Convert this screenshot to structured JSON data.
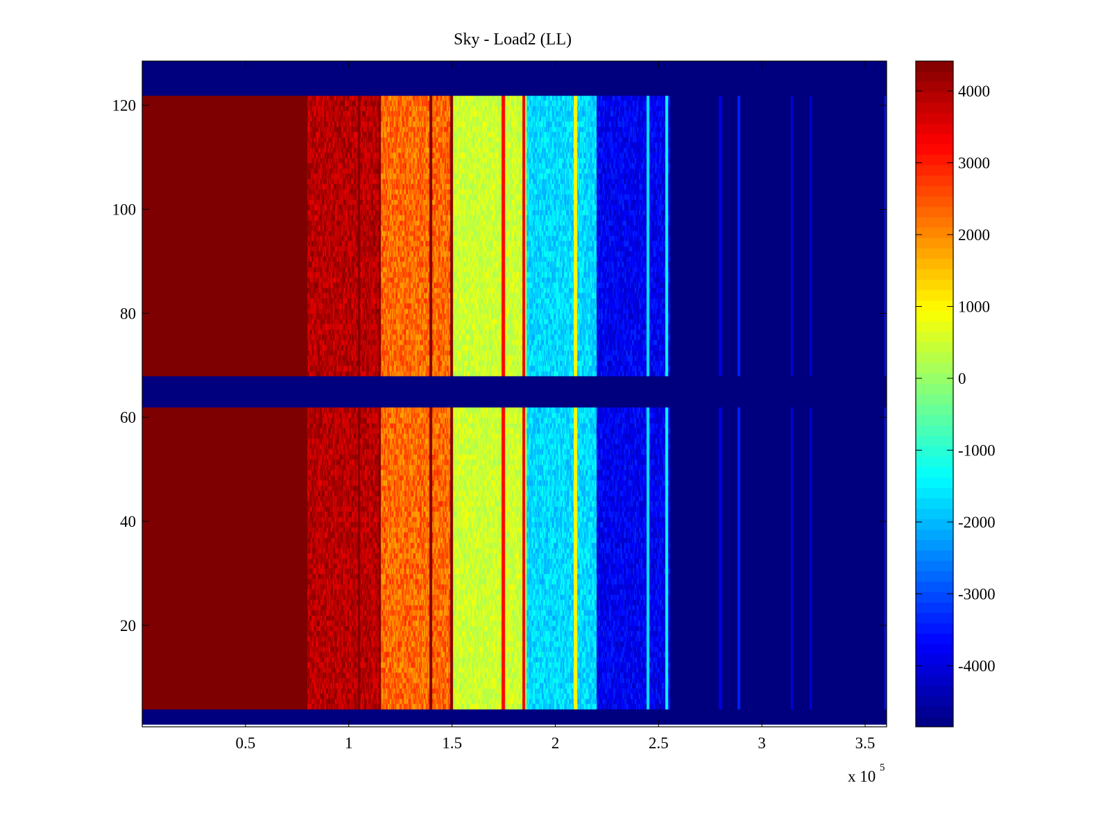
{
  "chart_data": {
    "type": "heatmap",
    "title": "Sky - Load2 (LL)",
    "xlabel": "",
    "ylabel": "",
    "x_multiplier_label": "x 10",
    "x_multiplier_exponent": "5",
    "xlim": [
      0,
      3.604
    ],
    "ylim": [
      0.5,
      128.5
    ],
    "clim": [
      -4850,
      4415
    ],
    "colormap": "jet",
    "xticks": [
      0.5,
      1,
      1.5,
      2,
      2.5,
      3,
      3.5
    ],
    "xtick_labels": [
      "0.5",
      "1",
      "1.5",
      "2",
      "2.5",
      "3",
      "3.5"
    ],
    "yticks": [
      20,
      40,
      60,
      80,
      100,
      120
    ],
    "ytick_labels": [
      "20",
      "40",
      "60",
      "80",
      "100",
      "120"
    ],
    "cticks": [
      4000,
      3000,
      2000,
      1000,
      0,
      -1000,
      -2000,
      -3000,
      -4000
    ],
    "ctick_labels": [
      "4000",
      "3000",
      "2000",
      "1000",
      "0",
      "-1000",
      "-2000",
      "-3000",
      "-4000"
    ],
    "rows": 128,
    "empty_rows": [
      [
        1,
        3
      ],
      [
        62,
        67
      ],
      [
        122,
        128
      ]
    ],
    "empty_value": -4850,
    "column_profile": [
      {
        "x0": 0,
        "x1": 0.8,
        "value": 5000,
        "noise": 0
      },
      {
        "x0": 0.8,
        "x1": 1.15,
        "value": 3900,
        "noise": 500
      },
      {
        "x0": 1.15,
        "x1": 1.5,
        "value": 2300,
        "noise": 600
      },
      {
        "x0": 1.5,
        "x1": 1.86,
        "value": 500,
        "noise": 400
      },
      {
        "x0": 1.86,
        "x1": 2.2,
        "value": -1700,
        "noise": 500
      },
      {
        "x0": 2.2,
        "x1": 2.56,
        "value": -3800,
        "noise": 500
      },
      {
        "x0": 2.56,
        "x1": 3.604,
        "value": -4850,
        "noise": 0
      }
    ],
    "line_features": [
      {
        "x": 1.05,
        "value": 4400
      },
      {
        "x": 1.15,
        "value": 4400
      },
      {
        "x": 1.4,
        "value": 4400
      },
      {
        "x": 1.5,
        "value": 4400
      },
      {
        "x": 1.75,
        "value": 3200
      },
      {
        "x": 1.85,
        "value": 3400
      },
      {
        "x": 2.1,
        "value": 1000
      },
      {
        "x": 2.45,
        "value": -1600
      },
      {
        "x": 2.54,
        "value": -1300
      },
      {
        "x": 2.8,
        "value": -4000
      },
      {
        "x": 2.89,
        "value": -3400
      },
      {
        "x": 3.15,
        "value": -4000
      },
      {
        "x": 3.24,
        "value": -4000
      },
      {
        "x": 3.6,
        "value": -3500
      }
    ]
  }
}
